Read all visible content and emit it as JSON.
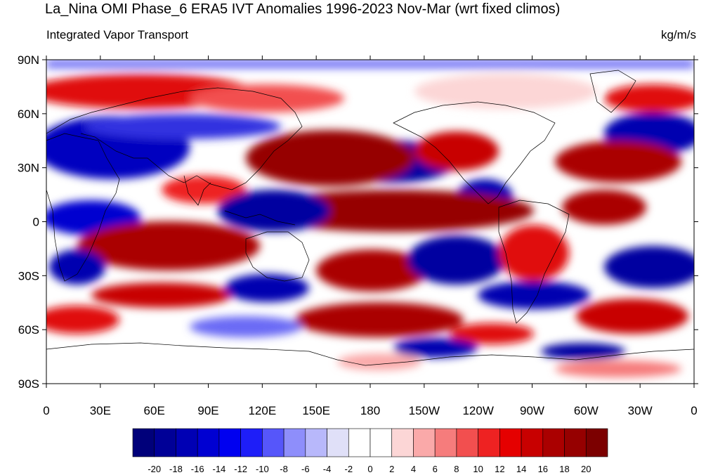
{
  "title": "La_Nina OMI Phase_6 ERA5 IVT Anomalies 1996-2023 Nov-Mar (wrt fixed climos)",
  "subtitle_left": "Integrated Vapor Transport",
  "subtitle_right": "kg/m/s",
  "lat_ticks": [
    "90N",
    "60N",
    "30N",
    "0",
    "30S",
    "60S",
    "90S"
  ],
  "lon_ticks": [
    "0",
    "30E",
    "60E",
    "90E",
    "120E",
    "150E",
    "180",
    "150W",
    "120W",
    "90W",
    "60W",
    "30W",
    "0"
  ],
  "colorbar": {
    "labels": [
      "-20",
      "-18",
      "-16",
      "-14",
      "-12",
      "-10",
      "-8",
      "-6",
      "-4",
      "-2",
      "0",
      "2",
      "4",
      "6",
      "8",
      "10",
      "12",
      "14",
      "16",
      "18",
      "20"
    ],
    "colors": [
      "#00007a",
      "#000097",
      "#0000b4",
      "#0000d2",
      "#0000f0",
      "#1e1ef8",
      "#5656fa",
      "#8e8efb",
      "#b8b8fb",
      "#e0e0f8",
      "#ffffff",
      "#ffffff",
      "#fcd6d6",
      "#faa9a9",
      "#f67c7c",
      "#f24f4f",
      "#ee2222",
      "#e50000",
      "#c80000",
      "#aa0000",
      "#960000",
      "#7c0000"
    ]
  }
}
